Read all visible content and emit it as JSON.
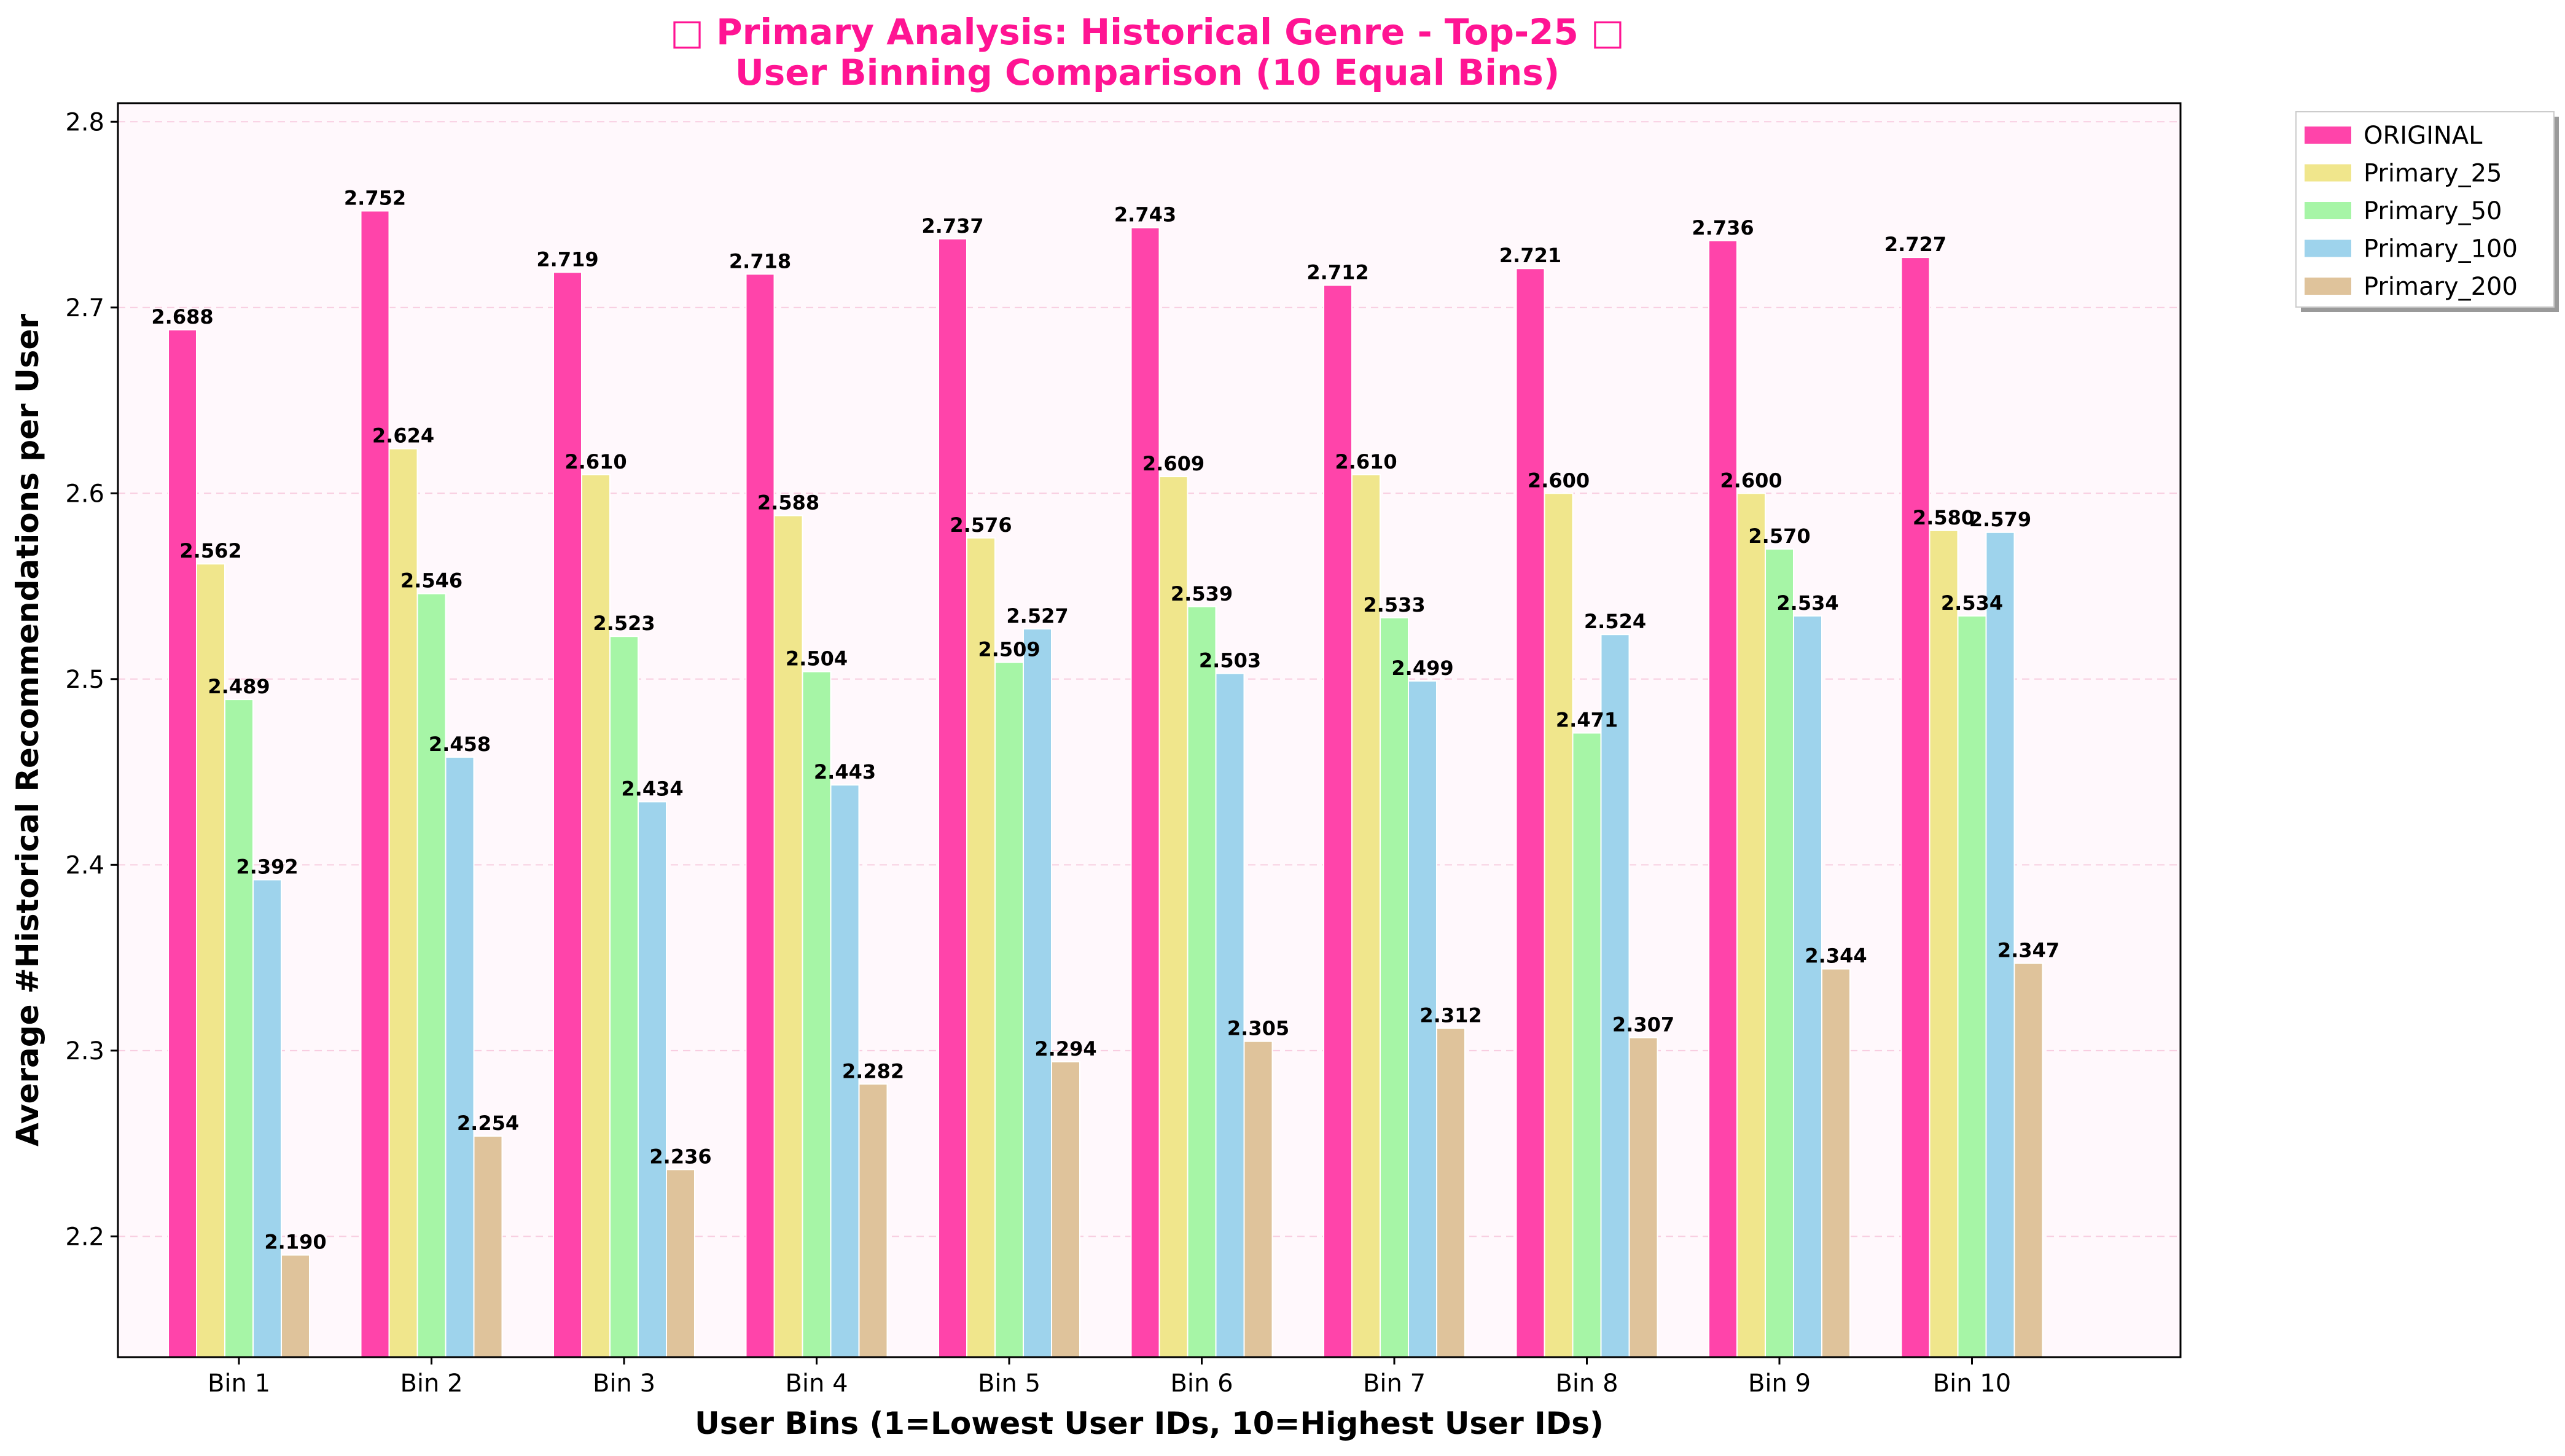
{
  "chart_data": {
    "type": "bar",
    "title_line1": "□ Primary Analysis: Historical Genre - Top-25 □",
    "title_line2": "User Binning Comparison (10 Equal Bins)",
    "xlabel": "User Bins (1=Lowest User IDs, 10=Highest User IDs)",
    "ylabel": "Average #Historical Recommendations per User",
    "ylim": [
      2.135,
      2.81
    ],
    "yticks": [
      "2.2",
      "2.3",
      "2.4",
      "2.5",
      "2.6",
      "2.7",
      "2.8"
    ],
    "grid": true,
    "legend_position": "outside-top-right",
    "categories": [
      "Bin 1",
      "Bin 2",
      "Bin 3",
      "Bin 4",
      "Bin 5",
      "Bin 6",
      "Bin 7",
      "Bin 8",
      "Bin 9",
      "Bin 10"
    ],
    "series": [
      {
        "name": "ORIGINAL",
        "color": "#ff44aa",
        "values": [
          2.688,
          2.752,
          2.719,
          2.718,
          2.737,
          2.743,
          2.712,
          2.721,
          2.736,
          2.727
        ],
        "labels": [
          "2.688",
          "2.752",
          "2.719",
          "2.718",
          "2.737",
          "2.743",
          "2.712",
          "2.721",
          "2.736",
          "2.727"
        ]
      },
      {
        "name": "Primary_25",
        "color": "#f0e68c",
        "values": [
          2.562,
          2.624,
          2.61,
          2.588,
          2.576,
          2.609,
          2.61,
          2.6,
          2.6,
          2.58
        ],
        "labels": [
          "2.562",
          "2.624",
          "2.610",
          "2.588",
          "2.576",
          "2.609",
          "2.610",
          "2.600",
          "2.600",
          "2.580"
        ]
      },
      {
        "name": "Primary_50",
        "color": "#a6f5a6",
        "values": [
          2.489,
          2.546,
          2.523,
          2.504,
          2.509,
          2.539,
          2.533,
          2.471,
          2.57,
          2.534
        ],
        "labels": [
          "2.489",
          "2.546",
          "2.523",
          "2.504",
          "2.509",
          "2.539",
          "2.533",
          "2.471",
          "2.570",
          "2.534"
        ]
      },
      {
        "name": "Primary_100",
        "color": "#9ed3ec",
        "values": [
          2.392,
          2.458,
          2.434,
          2.443,
          2.527,
          2.503,
          2.499,
          2.524,
          2.534,
          2.579
        ],
        "labels": [
          "2.392",
          "2.458",
          "2.434",
          "2.443",
          "2.527",
          "2.503",
          "2.499",
          "2.524",
          "2.534",
          "2.579"
        ]
      },
      {
        "name": "Primary_200",
        "color": "#dfc39b",
        "values": [
          2.19,
          2.254,
          2.236,
          2.282,
          2.294,
          2.305,
          2.312,
          2.307,
          2.344,
          2.347
        ],
        "labels": [
          "2.190",
          "2.254",
          "2.236",
          "2.282",
          "2.294",
          "2.305",
          "2.312",
          "2.307",
          "2.344",
          "2.347"
        ]
      }
    ]
  }
}
